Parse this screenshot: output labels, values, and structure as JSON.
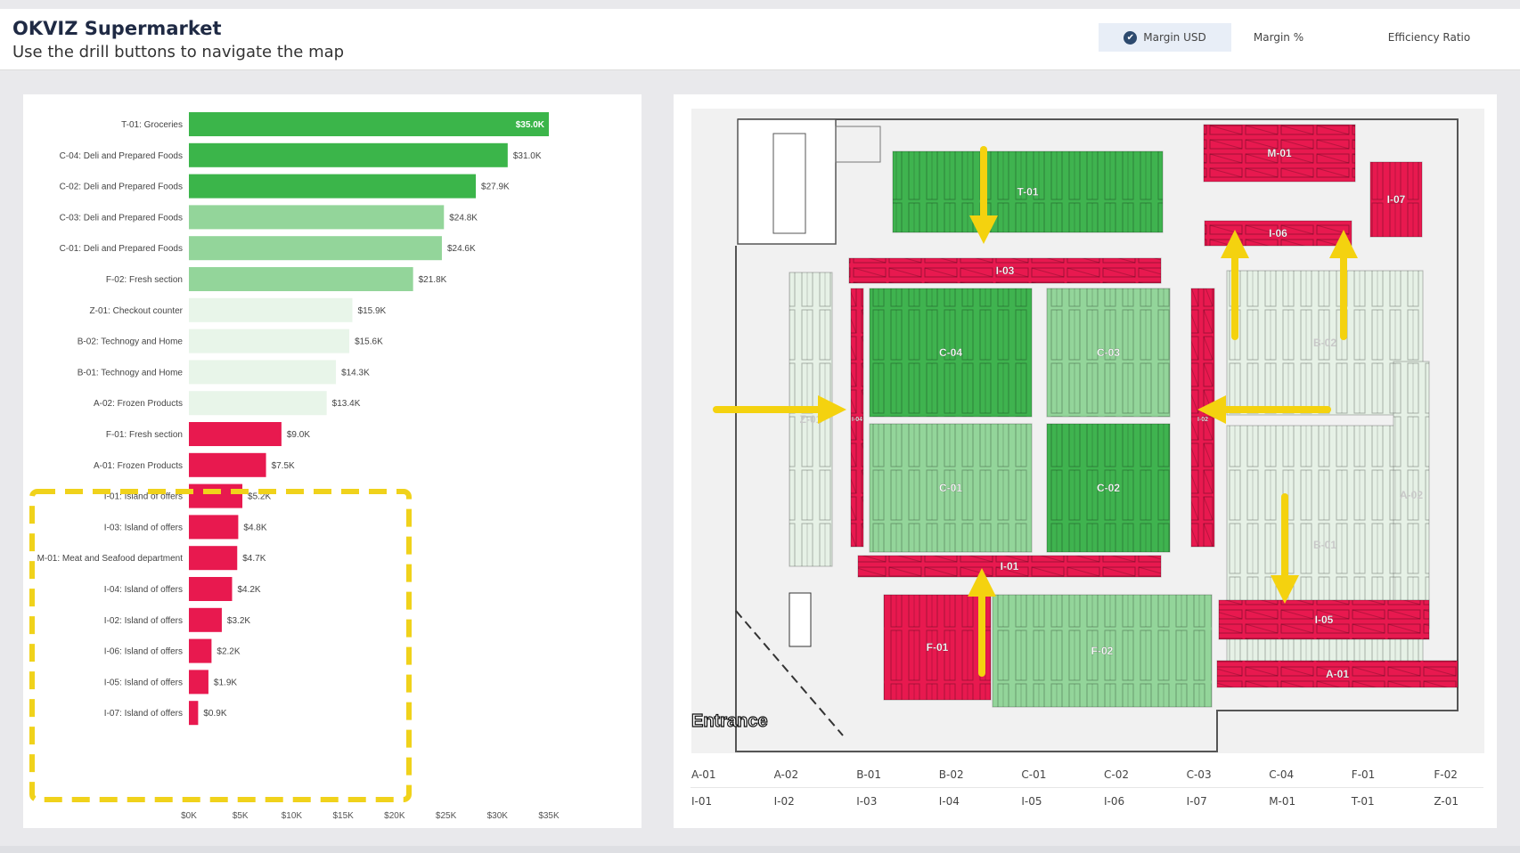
{
  "header": {
    "title": "OKVIZ Supermarket",
    "subtitle": "Use the drill buttons to navigate the map",
    "measures": [
      {
        "label": "Margin USD",
        "active": true
      },
      {
        "label": "Margin %",
        "active": false
      },
      {
        "label": "Efficiency Ratio",
        "active": false
      }
    ]
  },
  "colors": {
    "strong_green": "#3bb54a",
    "light_green": "#93d59a",
    "pale_green": "#e8f5e9",
    "red": "#e8194f",
    "highlight_yellow": "#f0d21b"
  },
  "chart_data": {
    "type": "bar",
    "orientation": "horizontal",
    "categories": [
      "T-01: Groceries",
      "C-04: Deli and Prepared Foods",
      "C-02: Deli and Prepared Foods",
      "C-03: Deli and Prepared Foods",
      "C-01: Deli and Prepared Foods",
      "F-02: Fresh section",
      "Z-01: Checkout counter",
      "B-02: Technogy and Home",
      "B-01: Technogy and Home",
      "A-02: Frozen Products",
      "F-01: Fresh section",
      "A-01: Frozen Products",
      "I-01: Island of offers",
      "I-03: Island of offers",
      "M-01: Meat and Seafood department",
      "I-04: Island of offers",
      "I-02: Island of offers",
      "I-06: Island of offers",
      "I-05: Island of offers",
      "I-07: Island of offers"
    ],
    "values": [
      35.0,
      31.0,
      27.9,
      24.8,
      24.6,
      21.8,
      15.9,
      15.6,
      14.3,
      13.4,
      9.0,
      7.5,
      5.2,
      4.8,
      4.7,
      4.2,
      3.2,
      2.2,
      1.9,
      0.9
    ],
    "value_labels": [
      "$35.0K",
      "$31.0K",
      "$27.9K",
      "$24.8K",
      "$24.6K",
      "$21.8K",
      "$15.9K",
      "$15.6K",
      "$14.3K",
      "$13.4K",
      "$9.0K",
      "$7.5K",
      "$5.2K",
      "$4.8K",
      "$4.7K",
      "$4.2K",
      "$3.2K",
      "$2.2K",
      "$1.9K",
      "$0.9K"
    ],
    "color_groups": [
      "strong",
      "strong",
      "strong",
      "light",
      "light",
      "light",
      "pale",
      "pale",
      "pale",
      "pale",
      "red",
      "red",
      "red",
      "red",
      "red",
      "red",
      "red",
      "red",
      "red",
      "red"
    ],
    "x_ticks": [
      "$0K",
      "$5K",
      "$10K",
      "$15K",
      "$20K",
      "$25K",
      "$30K",
      "$35K"
    ],
    "xlim": [
      0,
      35
    ],
    "unit": "thousand USD",
    "highlighted_range": [
      "A-01: Frozen Products",
      "I-07: Island of offers"
    ]
  },
  "map": {
    "entrance_label": "Entrance",
    "zones": [
      {
        "id": "T-01",
        "color": "strong"
      },
      {
        "id": "M-01",
        "color": "red"
      },
      {
        "id": "I-07",
        "color": "red"
      },
      {
        "id": "I-06",
        "color": "red"
      },
      {
        "id": "I-03",
        "color": "red"
      },
      {
        "id": "C-04",
        "color": "strong"
      },
      {
        "id": "C-03",
        "color": "light"
      },
      {
        "id": "B-02",
        "color": "pale"
      },
      {
        "id": "Z-01",
        "color": "pale"
      },
      {
        "id": "I-04",
        "color": "red"
      },
      {
        "id": "I-02",
        "color": "red"
      },
      {
        "id": "C-01",
        "color": "light"
      },
      {
        "id": "C-02",
        "color": "strong"
      },
      {
        "id": "B-01",
        "color": "pale"
      },
      {
        "id": "A-02",
        "color": "pale"
      },
      {
        "id": "I-01",
        "color": "red"
      },
      {
        "id": "I-05",
        "color": "red"
      },
      {
        "id": "F-01",
        "color": "red"
      },
      {
        "id": "F-02",
        "color": "light"
      },
      {
        "id": "A-01",
        "color": "red"
      }
    ]
  },
  "drill_buttons": {
    "row1": [
      "A-01",
      "A-02",
      "B-01",
      "B-02",
      "C-01",
      "C-02",
      "C-03",
      "C-04",
      "F-01",
      "F-02"
    ],
    "row2": [
      "I-01",
      "I-02",
      "I-03",
      "I-04",
      "I-05",
      "I-06",
      "I-07",
      "M-01",
      "T-01",
      "Z-01"
    ]
  }
}
